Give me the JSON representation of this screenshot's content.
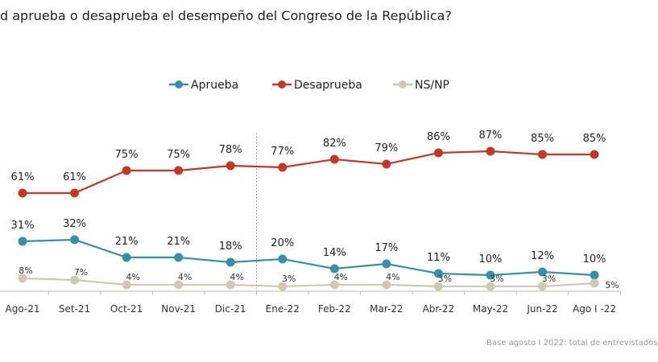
{
  "title": "d aprueba o desaprueba el desempeño del Congreso de la República?",
  "footer": "Base agosto I 2022: total de entrevistados",
  "chart_data": {
    "type": "line",
    "title": "d aprueba o desaprueba el desempeño del Congreso de la República?",
    "categories": [
      "Ago-21",
      "Set-21",
      "Oct-21",
      "Nov-21",
      "Dic-21",
      "Ene-22",
      "Feb-22",
      "Mar-22",
      "Abr-22",
      "May-22",
      "Jun-22",
      "Ago I -22"
    ],
    "series": [
      {
        "name": "Aprueba",
        "color": "#3a8fa5",
        "values": [
          31,
          32,
          21,
          21,
          18,
          20,
          14,
          17,
          11,
          10,
          12,
          10
        ]
      },
      {
        "name": "Desaprueba",
        "color": "#c0392b",
        "values": [
          61,
          61,
          75,
          75,
          78,
          77,
          82,
          79,
          86,
          87,
          85,
          85
        ]
      },
      {
        "name": "NS/NP",
        "color": "#cfc8b2",
        "values": [
          8,
          7,
          4,
          4,
          4,
          3,
          4,
          4,
          3,
          3,
          3,
          5
        ]
      }
    ],
    "value_suffix": "%",
    "ylim": [
      0,
      100
    ],
    "legend": "top-center",
    "grid": false,
    "separator_after": "Dic-21"
  }
}
